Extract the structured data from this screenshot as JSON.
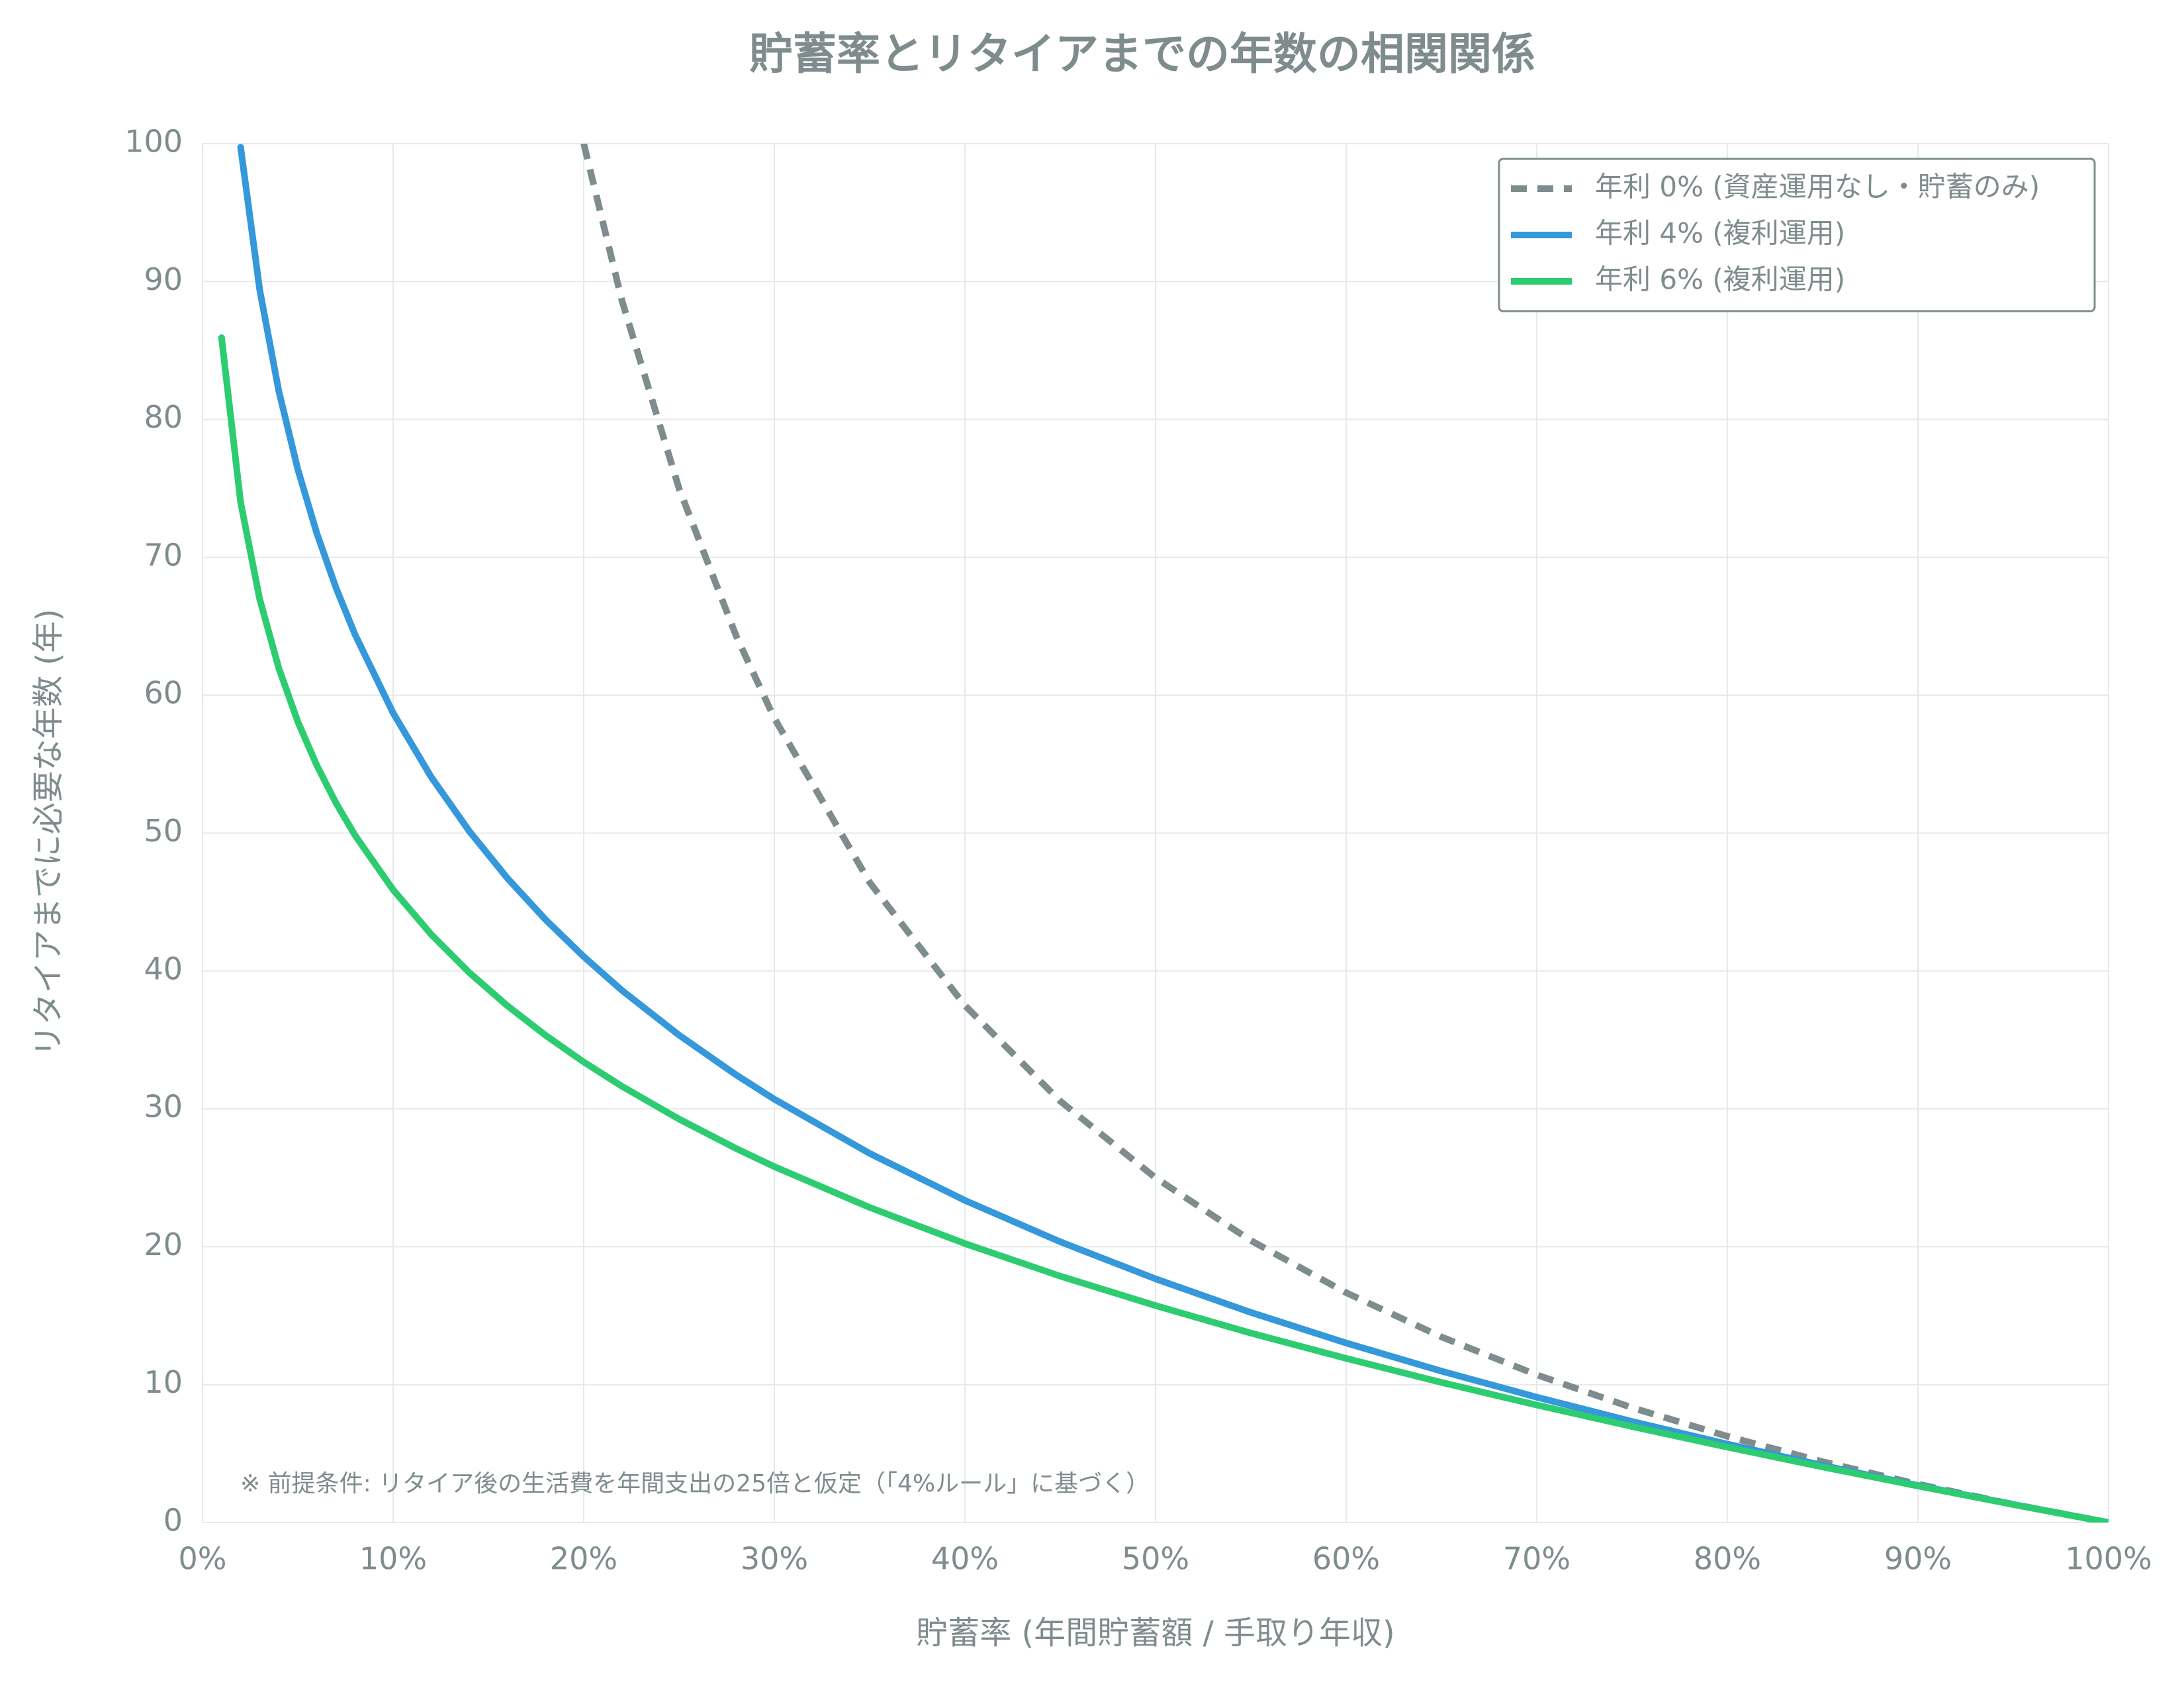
{
  "chart_data": {
    "type": "line",
    "title": "貯蓄率とリタイアまでの年数の相関関係",
    "x_label": "貯蓄率 (年間貯蓄額 / 手取り年収)",
    "y_label": "リタイアまでに必要な年数 (年)",
    "annotation": "※ 前提条件: リタイア後の生活費を年間支出の25倍と仮定（「4%ルール」に基づく）",
    "x": [
      1,
      2,
      3,
      4,
      5,
      6,
      7,
      8,
      10,
      12,
      14,
      16,
      18,
      20,
      22,
      25,
      28,
      30,
      35,
      40,
      45,
      50,
      55,
      60,
      65,
      70,
      75,
      80,
      85,
      90,
      95,
      100
    ],
    "series": [
      {
        "name": "年利 0% (資産運用なし・貯蓄のみ)",
        "color": "#7f8c8d",
        "dashed": true,
        "values": [
          null,
          null,
          null,
          null,
          null,
          null,
          null,
          null,
          null,
          null,
          null,
          null,
          null,
          100,
          88.64,
          75,
          64.29,
          58.33,
          46.43,
          37.5,
          30.56,
          25,
          20.45,
          16.67,
          13.46,
          10.71,
          8.33,
          6.25,
          4.41,
          2.78,
          1.32,
          0
        ]
      },
      {
        "name": "年利 4% (複利運用)",
        "color": "#3498db",
        "dashed": false,
        "values": [
          null,
          99.74,
          89.41,
          82.07,
          76.38,
          71.73,
          67.8,
          64.4,
          58.71,
          54.06,
          50.13,
          46.72,
          43.72,
          41.04,
          38.6,
          35.35,
          32.46,
          30.7,
          26.77,
          23.36,
          20.36,
          17.67,
          15.24,
          13.02,
          10.98,
          9.09,
          7.33,
          5.69,
          4.14,
          2.69,
          1.31,
          0
        ]
      },
      {
        "name": "年利 6% (複利運用)",
        "color": "#2ecc71",
        "dashed": false,
        "values": [
          85.93,
          73.98,
          66.97,
          61.97,
          58.08,
          54.9,
          52.19,
          49.84,
          45.89,
          42.65,
          39.88,
          37.47,
          35.33,
          33.4,
          31.64,
          29.26,
          27.12,
          25.81,
          22.85,
          20.23,
          17.87,
          15.73,
          13.74,
          11.9,
          10.16,
          8.52,
          6.96,
          5.47,
          4.03,
          2.65,
          1.3,
          0
        ]
      }
    ],
    "xlim": [
      0,
      100
    ],
    "xticks": [
      {
        "value": 0,
        "label": "0%"
      },
      {
        "value": 10,
        "label": "10%"
      },
      {
        "value": 20,
        "label": "20%"
      },
      {
        "value": 30,
        "label": "30%"
      },
      {
        "value": 40,
        "label": "40%"
      },
      {
        "value": 50,
        "label": "50%"
      },
      {
        "value": 60,
        "label": "60%"
      },
      {
        "value": 70,
        "label": "70%"
      },
      {
        "value": 80,
        "label": "80%"
      },
      {
        "value": 90,
        "label": "90%"
      },
      {
        "value": 100,
        "label": "100%"
      }
    ],
    "ylim": [
      0,
      100
    ],
    "yticks": [
      0,
      10,
      20,
      30,
      40,
      50,
      60,
      70,
      80,
      90,
      100
    ],
    "grid": true,
    "legend": "upper right"
  }
}
